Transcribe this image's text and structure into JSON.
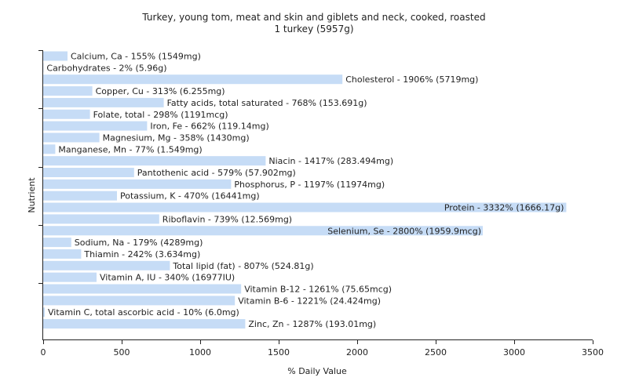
{
  "chart_data": {
    "type": "bar",
    "orientation": "horizontal",
    "title": "Turkey, young tom, meat and skin and giblets and neck, cooked, roasted",
    "subtitle": "1 turkey (5957g)",
    "xlabel": "% Daily Value",
    "ylabel": "Nutrient",
    "xlim": [
      0,
      3500
    ],
    "xticks": [
      0,
      500,
      1000,
      1500,
      2000,
      2500,
      3000,
      3500
    ],
    "grid": false,
    "bar_color": "#c6dcf6",
    "categories": [
      "Calcium, Ca",
      "Carbohydrates",
      "Cholesterol",
      "Copper, Cu",
      "Fatty acids, total saturated",
      "Folate, total",
      "Iron, Fe",
      "Magnesium, Mg",
      "Manganese, Mn",
      "Niacin",
      "Pantothenic acid",
      "Phosphorus, P",
      "Potassium, K",
      "Protein",
      "Riboflavin",
      "Selenium, Se",
      "Sodium, Na",
      "Thiamin",
      "Total lipid (fat)",
      "Vitamin A, IU",
      "Vitamin B-12",
      "Vitamin B-6",
      "Vitamin C, total ascorbic acid",
      "Zinc, Zn"
    ],
    "values": [
      155,
      2,
      1906,
      313,
      768,
      298,
      662,
      358,
      77,
      1417,
      579,
      1197,
      470,
      3332,
      739,
      2800,
      179,
      242,
      807,
      340,
      1261,
      1221,
      10,
      1287
    ],
    "labels": [
      "Calcium, Ca - 155% (1549mg)",
      "Carbohydrates - 2% (5.96g)",
      "Cholesterol - 1906% (5719mg)",
      "Copper, Cu - 313% (6.255mg)",
      "Fatty acids, total saturated - 768% (153.691g)",
      "Folate, total - 298% (1191mcg)",
      "Iron, Fe - 662% (119.14mg)",
      "Magnesium, Mg - 358% (1430mg)",
      "Manganese, Mn - 77% (1.549mg)",
      "Niacin - 1417% (283.494mg)",
      "Pantothenic acid - 579% (57.902mg)",
      "Phosphorus, P - 1197% (11974mg)",
      "Potassium, K - 470% (16441mg)",
      "Protein - 3332% (1666.17g)",
      "Riboflavin - 739% (12.569mg)",
      "Selenium, Se - 2800% (1959.9mcg)",
      "Sodium, Na - 179% (4289mg)",
      "Thiamin - 242% (3.634mg)",
      "Total lipid (fat) - 807% (524.81g)",
      "Vitamin A, IU - 340% (16977IU)",
      "Vitamin B-12 - 1261% (75.65mcg)",
      "Vitamin B-6 - 1221% (24.424mg)",
      "Vitamin C, total ascorbic acid - 10% (6.0mg)",
      "Zinc, Zn - 1287% (193.01mg)"
    ]
  }
}
